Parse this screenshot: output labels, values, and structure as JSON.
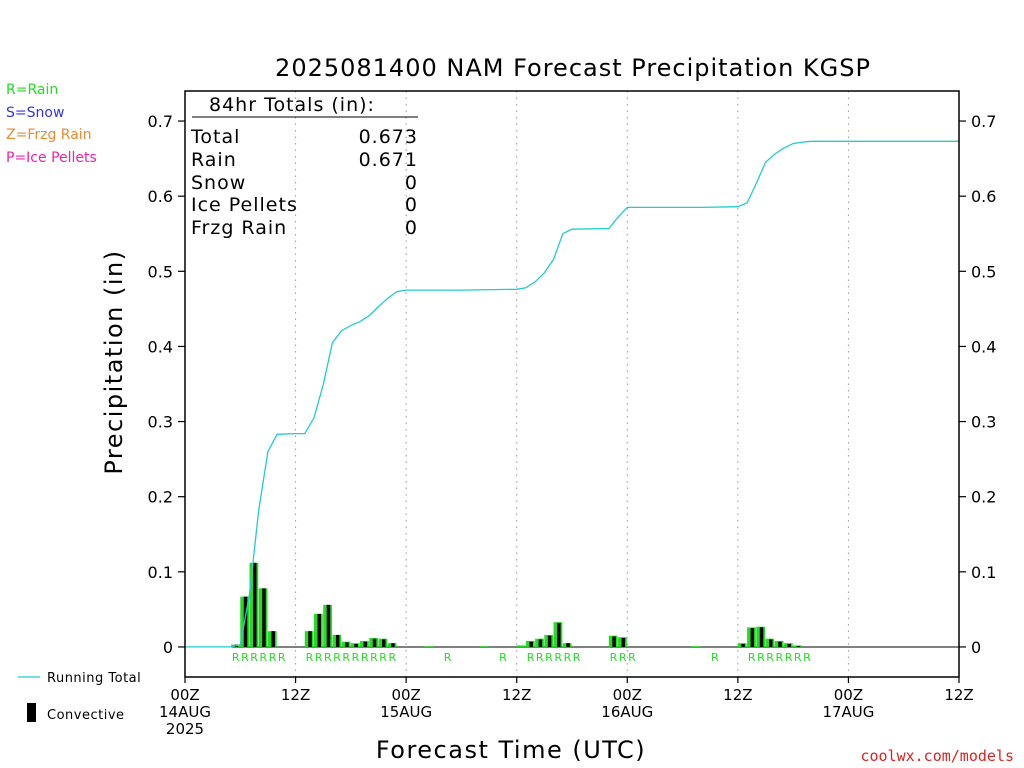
{
  "chart_data": {
    "type": "bar",
    "title": "2025081400 NAM Forecast Precipitation KGSP",
    "xlabel": "Forecast Time (UTC)",
    "ylabel": "Precipitation (in)",
    "ylim": [
      -0.04,
      0.74
    ],
    "xlim_hours": [
      0,
      84
    ],
    "yticks": [
      "0.7",
      "0.6",
      "0.5",
      "0.4",
      "0.3",
      "0.2",
      "0.1",
      "0"
    ],
    "ytick_values": [
      0.7,
      0.6,
      0.5,
      0.4,
      0.3,
      0.2,
      0.1,
      0
    ],
    "xticks": [
      {
        "hour": 0,
        "lines": [
          "00Z",
          "14AUG",
          "2025"
        ]
      },
      {
        "hour": 12,
        "lines": [
          "12Z"
        ]
      },
      {
        "hour": 24,
        "lines": [
          "00Z",
          "15AUG"
        ]
      },
      {
        "hour": 36,
        "lines": [
          "12Z"
        ]
      },
      {
        "hour": 48,
        "lines": [
          "00Z",
          "16AUG"
        ]
      },
      {
        "hour": 60,
        "lines": [
          "12Z"
        ]
      },
      {
        "hour": 72,
        "lines": [
          "00Z",
          "17AUG"
        ]
      },
      {
        "hour": 84,
        "lines": [
          "12Z"
        ]
      }
    ],
    "grid": "vertical-dotted",
    "totals_box": {
      "heading": "84hr Totals (in):",
      "rows": [
        {
          "label": "Total",
          "value": "0.673"
        },
        {
          "label": "Rain",
          "value": "0.671"
        },
        {
          "label": "Snow",
          "value": "0"
        },
        {
          "label": "Ice Pellets",
          "value": "0"
        },
        {
          "label": "Frzg Rain",
          "value": "0"
        }
      ]
    },
    "precip_type_legend": [
      {
        "text": "R=Rain",
        "color": "#22dd22"
      },
      {
        "text": "S=Snow",
        "color": "#3333ee"
      },
      {
        "text": "Z=Frzg Rain",
        "color": "#ee8833"
      },
      {
        "text": "P=Ice Pellets",
        "color": "#ee22aa"
      }
    ],
    "legend": {
      "running_total_label": "Running Total",
      "convective_label": "Convective"
    },
    "colors": {
      "running_total": "#22cccc",
      "bar_total": "#22dd22",
      "bar_convective": "#000000",
      "rain_label": "#22dd22"
    },
    "bars_total": [
      {
        "hour": 6,
        "value": 0.003
      },
      {
        "hour": 7,
        "value": 0.067
      },
      {
        "hour": 8,
        "value": 0.112
      },
      {
        "hour": 9,
        "value": 0.078
      },
      {
        "hour": 10,
        "value": 0.021
      },
      {
        "hour": 14,
        "value": 0.021
      },
      {
        "hour": 15,
        "value": 0.044
      },
      {
        "hour": 16,
        "value": 0.056
      },
      {
        "hour": 17,
        "value": 0.016
      },
      {
        "hour": 18,
        "value": 0.007
      },
      {
        "hour": 19,
        "value": 0.005
      },
      {
        "hour": 20,
        "value": 0.008
      },
      {
        "hour": 21,
        "value": 0.012
      },
      {
        "hour": 22,
        "value": 0.011
      },
      {
        "hour": 23,
        "value": 0.005
      },
      {
        "hour": 27,
        "value": 0.001
      },
      {
        "hour": 33,
        "value": 0.001
      },
      {
        "hour": 37,
        "value": 0.002
      },
      {
        "hour": 38,
        "value": 0.008
      },
      {
        "hour": 39,
        "value": 0.011
      },
      {
        "hour": 40,
        "value": 0.016
      },
      {
        "hour": 41,
        "value": 0.033
      },
      {
        "hour": 42,
        "value": 0.005
      },
      {
        "hour": 47,
        "value": 0.015
      },
      {
        "hour": 48,
        "value": 0.013
      },
      {
        "hour": 56,
        "value": 0.001
      },
      {
        "hour": 61,
        "value": 0.005
      },
      {
        "hour": 62,
        "value": 0.026
      },
      {
        "hour": 63,
        "value": 0.027
      },
      {
        "hour": 64,
        "value": 0.011
      },
      {
        "hour": 65,
        "value": 0.008
      },
      {
        "hour": 66,
        "value": 0.005
      },
      {
        "hour": 67,
        "value": 0.002
      }
    ],
    "bars_convective": [
      {
        "hour": 6,
        "value": 0.003
      },
      {
        "hour": 7,
        "value": 0.067
      },
      {
        "hour": 8,
        "value": 0.112
      },
      {
        "hour": 9,
        "value": 0.078
      },
      {
        "hour": 10,
        "value": 0.021
      },
      {
        "hour": 14,
        "value": 0.021
      },
      {
        "hour": 15,
        "value": 0.044
      },
      {
        "hour": 16,
        "value": 0.056
      },
      {
        "hour": 17,
        "value": 0.016
      },
      {
        "hour": 18,
        "value": 0.006
      },
      {
        "hour": 19,
        "value": 0.004
      },
      {
        "hour": 20,
        "value": 0.007
      },
      {
        "hour": 21,
        "value": 0.011
      },
      {
        "hour": 22,
        "value": 0.01
      },
      {
        "hour": 23,
        "value": 0.005
      },
      {
        "hour": 38,
        "value": 0.007
      },
      {
        "hour": 39,
        "value": 0.01
      },
      {
        "hour": 40,
        "value": 0.015
      },
      {
        "hour": 41,
        "value": 0.032
      },
      {
        "hour": 42,
        "value": 0.005
      },
      {
        "hour": 47,
        "value": 0.014
      },
      {
        "hour": 48,
        "value": 0.012
      },
      {
        "hour": 61,
        "value": 0.004
      },
      {
        "hour": 62,
        "value": 0.025
      },
      {
        "hour": 63,
        "value": 0.026
      },
      {
        "hour": 64,
        "value": 0.01
      },
      {
        "hour": 65,
        "value": 0.007
      },
      {
        "hour": 66,
        "value": 0.004
      },
      {
        "hour": 67,
        "value": 0.001
      }
    ],
    "running_total": [
      {
        "hour": 0,
        "value": 0
      },
      {
        "hour": 5,
        "value": 0
      },
      {
        "hour": 6,
        "value": 0.003
      },
      {
        "hour": 7,
        "value": 0.07
      },
      {
        "hour": 8,
        "value": 0.182
      },
      {
        "hour": 9,
        "value": 0.26
      },
      {
        "hour": 10,
        "value": 0.283
      },
      {
        "hour": 12,
        "value": 0.284
      },
      {
        "hour": 13,
        "value": 0.284
      },
      {
        "hour": 14,
        "value": 0.305
      },
      {
        "hour": 15,
        "value": 0.349
      },
      {
        "hour": 16,
        "value": 0.405
      },
      {
        "hour": 17,
        "value": 0.421
      },
      {
        "hour": 18,
        "value": 0.428
      },
      {
        "hour": 19,
        "value": 0.433
      },
      {
        "hour": 20,
        "value": 0.441
      },
      {
        "hour": 21,
        "value": 0.453
      },
      {
        "hour": 22,
        "value": 0.464
      },
      {
        "hour": 23,
        "value": 0.473
      },
      {
        "hour": 24,
        "value": 0.475
      },
      {
        "hour": 30,
        "value": 0.475
      },
      {
        "hour": 36,
        "value": 0.476
      },
      {
        "hour": 37,
        "value": 0.478
      },
      {
        "hour": 38,
        "value": 0.486
      },
      {
        "hour": 39,
        "value": 0.498
      },
      {
        "hour": 40,
        "value": 0.516
      },
      {
        "hour": 41,
        "value": 0.55
      },
      {
        "hour": 42,
        "value": 0.556
      },
      {
        "hour": 46,
        "value": 0.557
      },
      {
        "hour": 47,
        "value": 0.572
      },
      {
        "hour": 48,
        "value": 0.585
      },
      {
        "hour": 56,
        "value": 0.585
      },
      {
        "hour": 60,
        "value": 0.586
      },
      {
        "hour": 61,
        "value": 0.591
      },
      {
        "hour": 62,
        "value": 0.617
      },
      {
        "hour": 63,
        "value": 0.645
      },
      {
        "hour": 64,
        "value": 0.656
      },
      {
        "hour": 65,
        "value": 0.664
      },
      {
        "hour": 66,
        "value": 0.67
      },
      {
        "hour": 67,
        "value": 0.672
      },
      {
        "hour": 68,
        "value": 0.673
      },
      {
        "hour": 84,
        "value": 0.673
      }
    ],
    "ptype_labels": [
      {
        "hour": 6,
        "text": "R"
      },
      {
        "hour": 7,
        "text": "R"
      },
      {
        "hour": 8,
        "text": "R"
      },
      {
        "hour": 9,
        "text": "R"
      },
      {
        "hour": 10,
        "text": "R"
      },
      {
        "hour": 11,
        "text": "R"
      },
      {
        "hour": 14,
        "text": "R"
      },
      {
        "hour": 15,
        "text": "R"
      },
      {
        "hour": 16,
        "text": "R"
      },
      {
        "hour": 17,
        "text": "R"
      },
      {
        "hour": 18,
        "text": "R"
      },
      {
        "hour": 19,
        "text": "R"
      },
      {
        "hour": 20,
        "text": "R"
      },
      {
        "hour": 21,
        "text": "R"
      },
      {
        "hour": 22,
        "text": "R"
      },
      {
        "hour": 23,
        "text": "R"
      },
      {
        "hour": 29,
        "text": "R"
      },
      {
        "hour": 35,
        "text": "R"
      },
      {
        "hour": 38,
        "text": "R"
      },
      {
        "hour": 39,
        "text": "R"
      },
      {
        "hour": 40,
        "text": "R"
      },
      {
        "hour": 41,
        "text": "R"
      },
      {
        "hour": 42,
        "text": "R"
      },
      {
        "hour": 43,
        "text": "R"
      },
      {
        "hour": 47,
        "text": "R"
      },
      {
        "hour": 48,
        "text": "R"
      },
      {
        "hour": 49,
        "text": "R"
      },
      {
        "hour": 58,
        "text": "R"
      },
      {
        "hour": 62,
        "text": "R"
      },
      {
        "hour": 63,
        "text": "R"
      },
      {
        "hour": 64,
        "text": "R"
      },
      {
        "hour": 65,
        "text": "R"
      },
      {
        "hour": 66,
        "text": "R"
      },
      {
        "hour": 67,
        "text": "R"
      },
      {
        "hour": 68,
        "text": "R"
      }
    ]
  },
  "credit": "coolwx.com/models"
}
